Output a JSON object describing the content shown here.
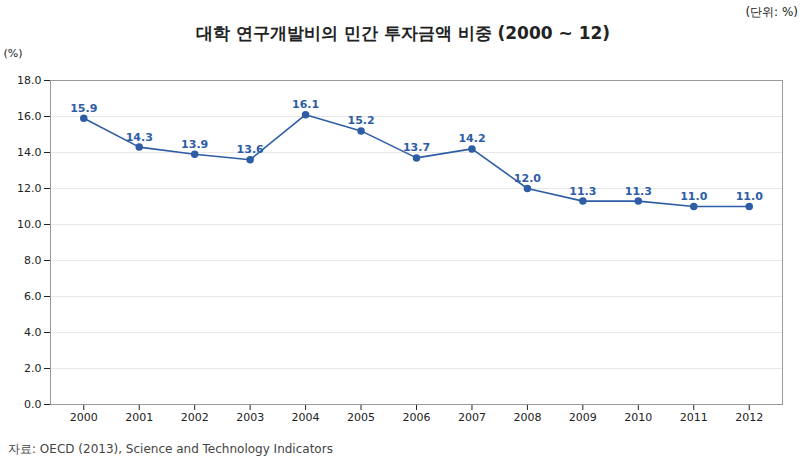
{
  "chart_data": {
    "type": "line",
    "title": "대학 연구개발비의 민간 투자금액 비중  (2000 ~ 12)",
    "ylabel": "(%)",
    "annotations": [
      "(단위:  %)",
      "자료: OECD (2013), Science and Technology Indicators"
    ],
    "x": [
      2000,
      2001,
      2002,
      2003,
      2004,
      2005,
      2006,
      2007,
      2008,
      2009,
      2010,
      2011,
      2012
    ],
    "values": [
      15.9,
      14.3,
      13.9,
      13.6,
      16.1,
      15.2,
      13.7,
      14.2,
      12.0,
      11.3,
      11.3,
      11.0,
      11.0
    ],
    "value_labels": [
      "15.9",
      "14.3",
      "13.9",
      "13.6",
      "16.1",
      "15.2",
      "13.7",
      "14.2",
      "12.0",
      "11.3",
      "11.3",
      "11.0",
      "11.0"
    ],
    "data_labels": true,
    "color": "#2E5DA6",
    "marker": "circle",
    "xlim": [
      1999.4,
      2012.6
    ],
    "xticks": [
      2000,
      2001,
      2002,
      2003,
      2004,
      2005,
      2006,
      2007,
      2008,
      2009,
      2010,
      2011,
      2012
    ],
    "ylim": [
      0,
      18.0
    ],
    "yticks": [
      {
        "value": 0,
        "label": "0.0"
      },
      {
        "value": 2,
        "label": "2.0"
      },
      {
        "value": 4,
        "label": "4.0"
      },
      {
        "value": 6,
        "label": "6.0"
      },
      {
        "value": 8,
        "label": "8.0"
      },
      {
        "value": 10,
        "label": "10.0"
      },
      {
        "value": 12,
        "label": "12.0"
      },
      {
        "value": 14,
        "label": "14.0"
      },
      {
        "value": 16,
        "label": "16.0"
      },
      {
        "value": 18,
        "label": "18.0"
      }
    ],
    "grid": true
  }
}
